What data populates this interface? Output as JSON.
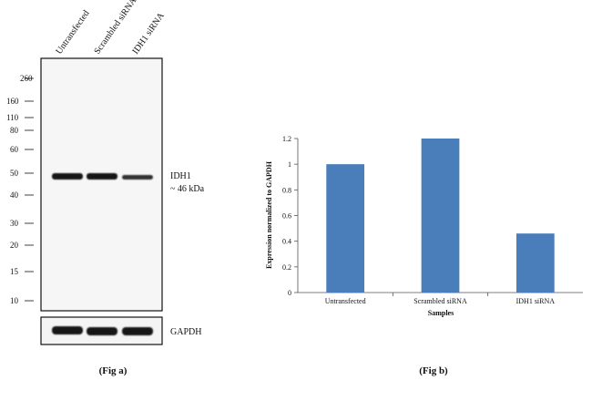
{
  "fig_a": {
    "lanes": [
      "Untransfected",
      "Scrambled siRNA",
      "IDH1 siRNA"
    ],
    "markers": [
      "260",
      "160",
      "110",
      "80",
      "60",
      "50",
      "40",
      "30",
      "20",
      "15",
      "10"
    ],
    "band_label": "IDH1",
    "band_size": "~ 46 kDa",
    "loading_label": "GAPDH",
    "caption": "(Fig a)"
  },
  "fig_b": {
    "caption": "(Fig b)"
  },
  "chart_data": {
    "type": "bar",
    "categories": [
      "Untransfected",
      "Scrambled siRNA",
      "IDH1 siRNA"
    ],
    "values": [
      1.0,
      1.2,
      0.46
    ],
    "xlabel": "Samples",
    "ylabel": "Expression normalized to GAPDH",
    "ylim": [
      0,
      1.2
    ],
    "yticks": [
      "0",
      "0.2",
      "0.4",
      "0.6",
      "0.8",
      "1",
      "1.2"
    ],
    "grid": false,
    "colors": {
      "bar": "#4a7ebb"
    }
  }
}
